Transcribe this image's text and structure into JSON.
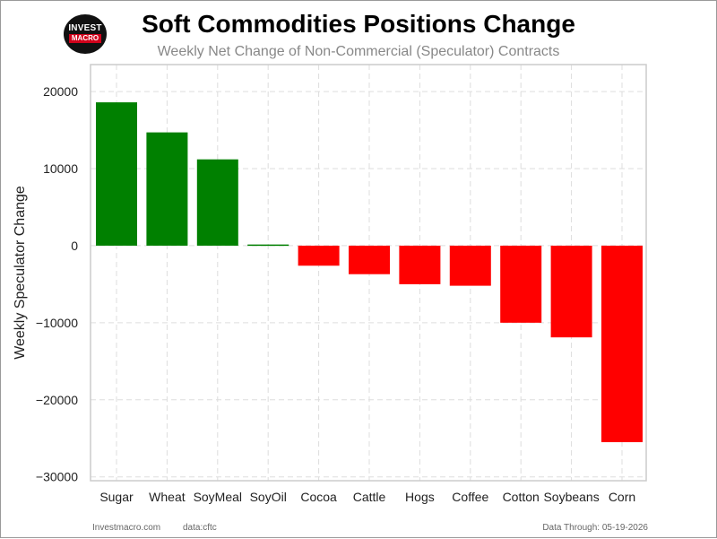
{
  "header": {
    "logo_line1": "INVEST",
    "logo_line2": "MACRO",
    "title": "Soft Commodities Positions Change",
    "subtitle": "Weekly Net Change of Non-Commercial (Speculator) Contracts"
  },
  "footer": {
    "site": "Investmacro.com",
    "source": "data:cftc",
    "data_through": "Data Through: 05-19-2026"
  },
  "chart_data": {
    "type": "bar",
    "title": "Soft Commodities Positions Change",
    "subtitle": "Weekly Net Change of Non-Commercial (Speculator) Contracts",
    "xlabel": "",
    "ylabel": "Weekly Speculator Change",
    "categories": [
      "Sugar",
      "Wheat",
      "SoyMeal",
      "SoyOil",
      "Cocoa",
      "Cattle",
      "Hogs",
      "Coffee",
      "Cotton",
      "Soybeans",
      "Corn"
    ],
    "values": [
      18600,
      14700,
      11200,
      150,
      -2600,
      -3700,
      -5000,
      -5200,
      -10000,
      -11900,
      -25500
    ],
    "ylim": [
      -30500,
      23500
    ],
    "yticks": [
      20000,
      10000,
      0,
      -10000,
      -20000,
      -30000
    ],
    "ytick_labels": [
      "20000",
      "10000",
      "0",
      "−10000",
      "−20000",
      "−30000"
    ],
    "grid": true,
    "colors": {
      "positive": "#008000",
      "negative": "#ff0000",
      "grid": "#dddddd",
      "axes": "#cccccc"
    }
  }
}
